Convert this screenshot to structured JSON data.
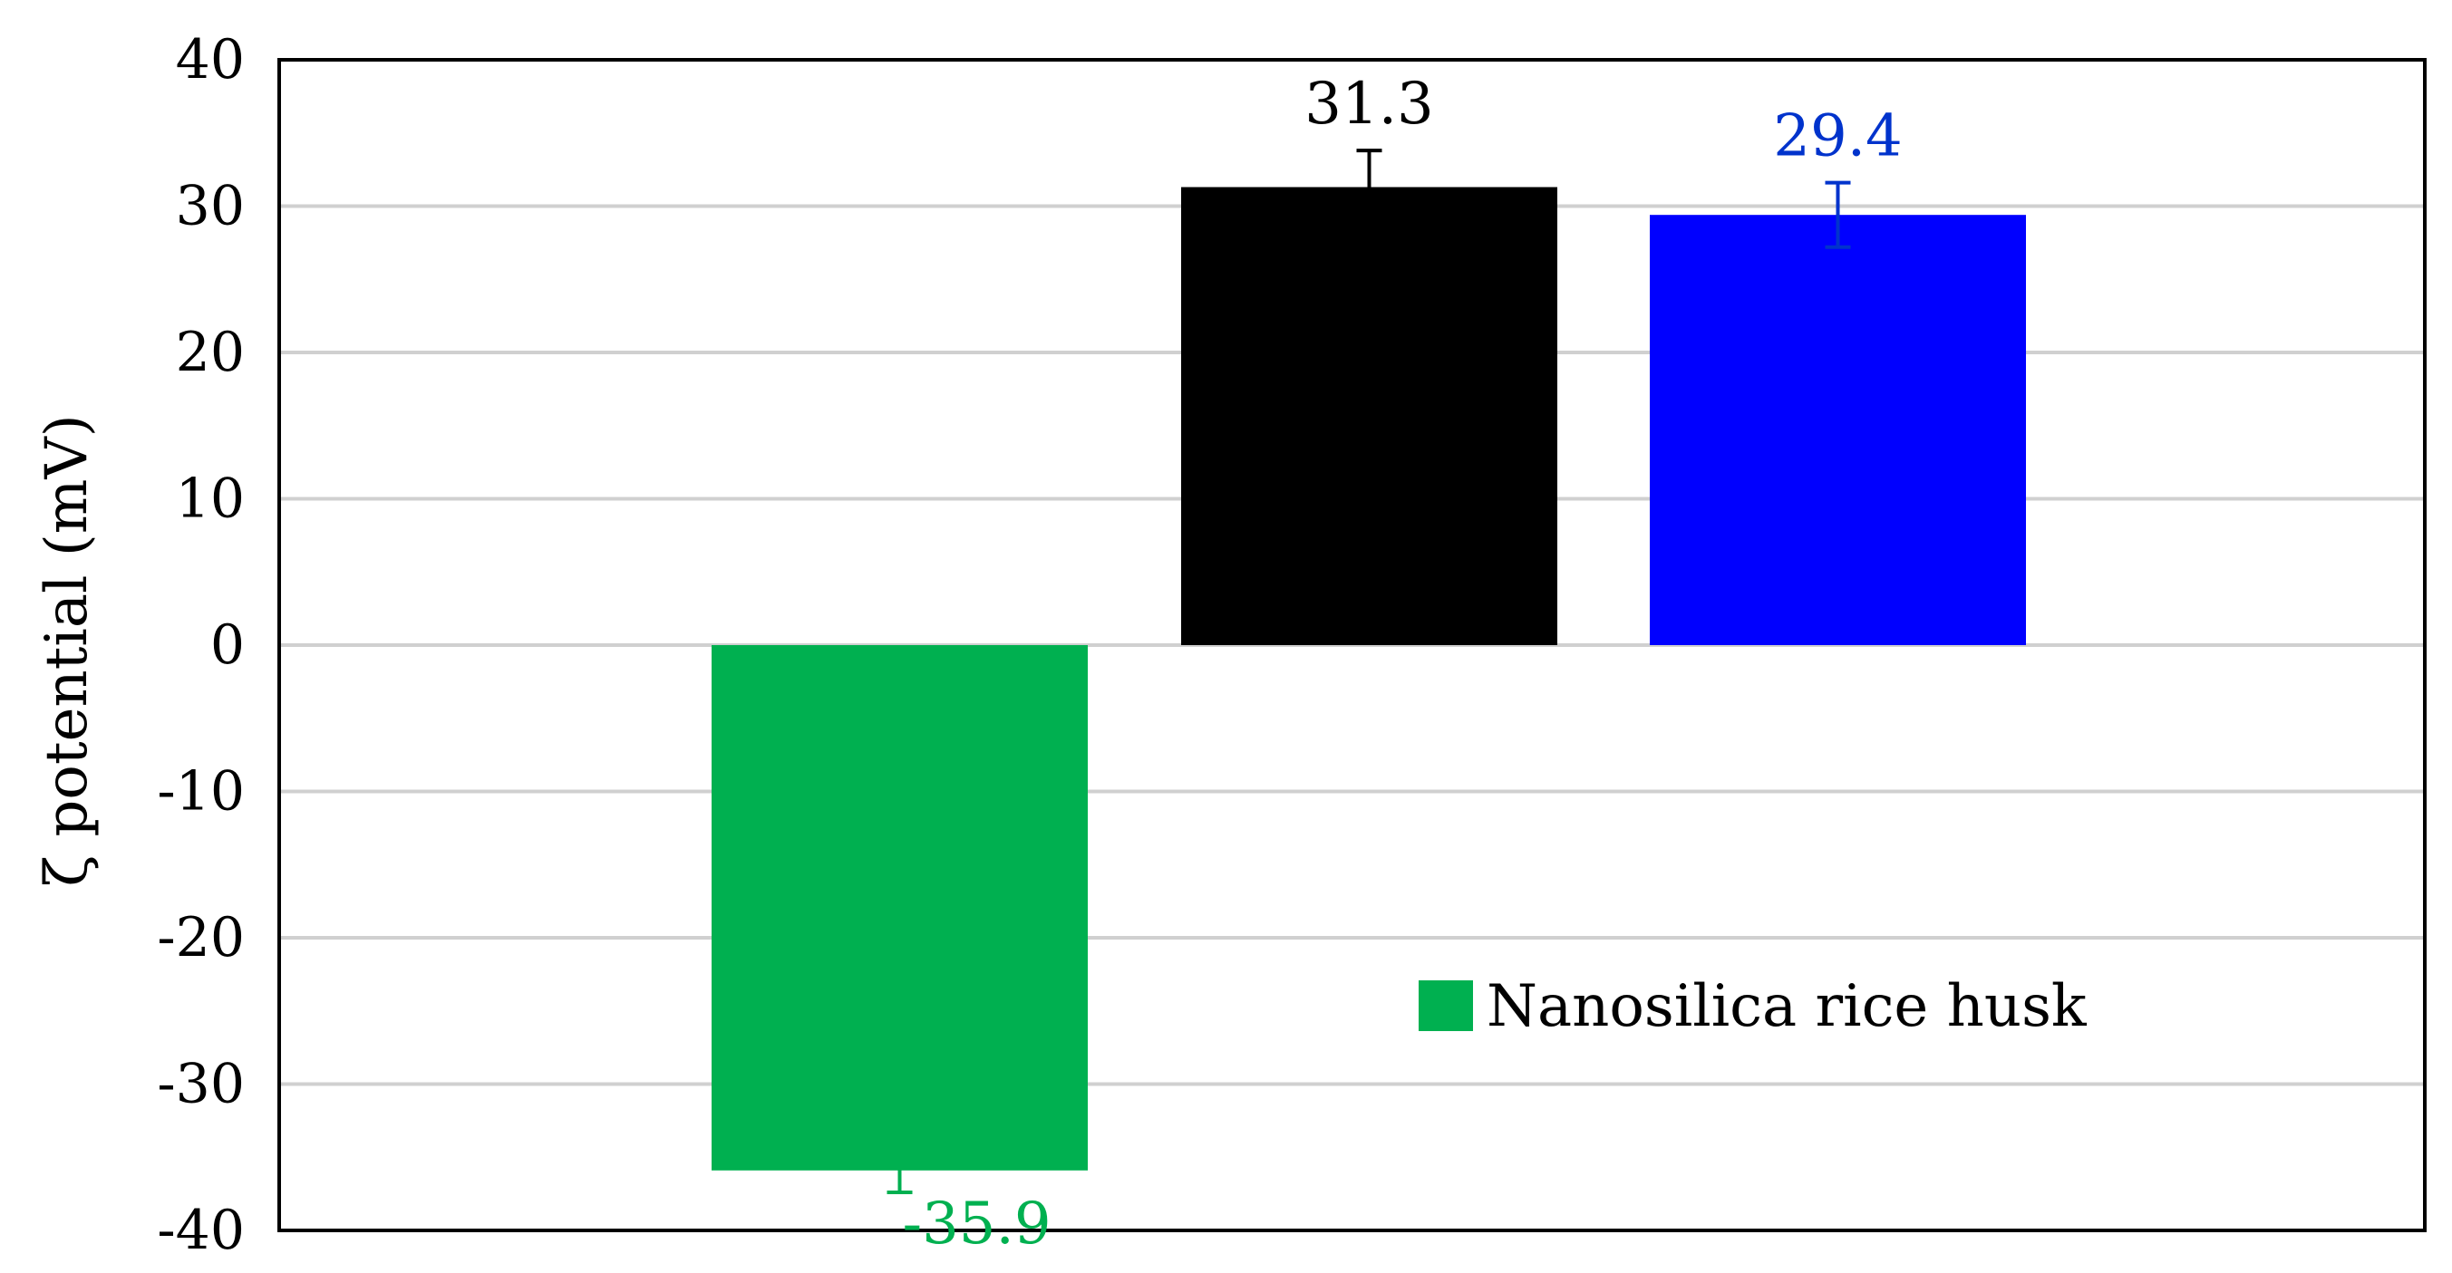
{
  "chart_data": {
    "type": "bar",
    "title": "",
    "xlabel": "",
    "ylabel": "ζ potential (mV)",
    "ylim": [
      -40,
      40
    ],
    "yticks": [
      40,
      30,
      20,
      10,
      0,
      -10,
      -20,
      -30,
      -40
    ],
    "grid": true,
    "series": [
      {
        "name": "Nanosilica rice husk",
        "value": -35.9,
        "label": "-35.9",
        "error": 1.5,
        "color": "#00b050",
        "label_color": "#00b050"
      },
      {
        "value": 31.3,
        "label": "31.3",
        "error": 2.5,
        "color": "#000000",
        "label_color": "#000000"
      },
      {
        "value": 29.4,
        "label": "29.4",
        "error": 2.2,
        "color": "#0000ff",
        "label_color": "#0033cc"
      }
    ],
    "legend": {
      "position": "lower-right",
      "entries": [
        "Nanosilica rice husk"
      ]
    }
  }
}
